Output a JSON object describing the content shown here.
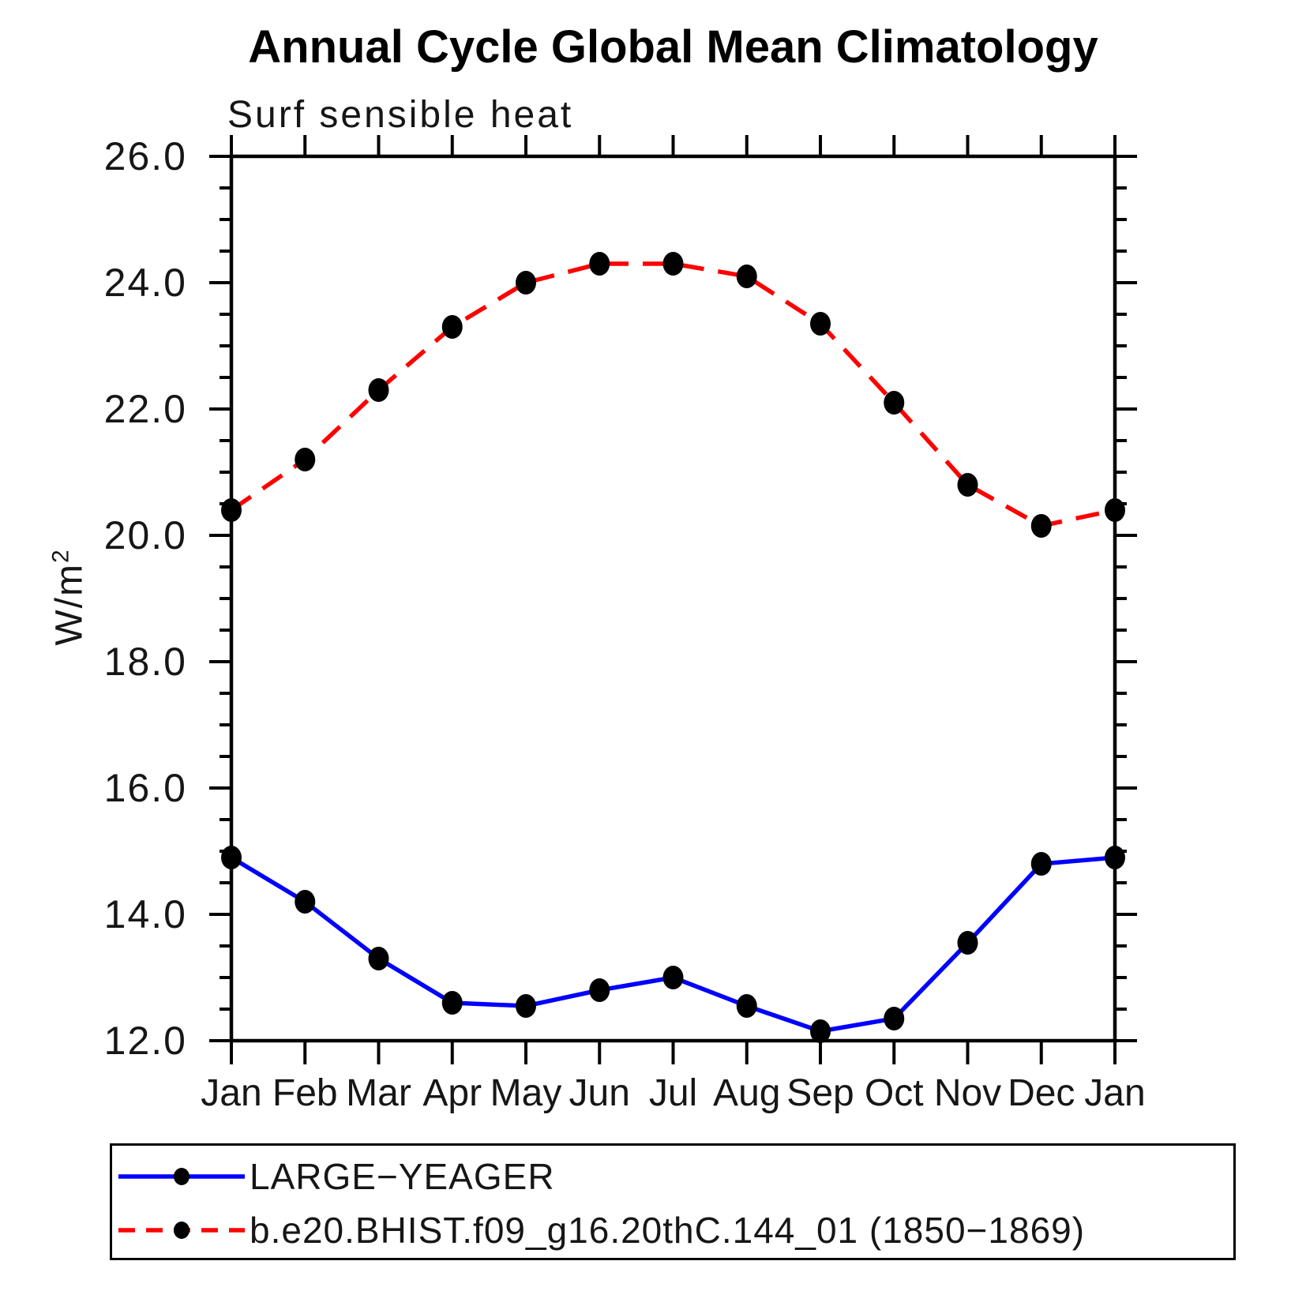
{
  "title": "Annual Cycle Global Mean Climatology",
  "subtitle": "Surf sensible heat",
  "ylabel": {
    "base": "W/m",
    "exponent": "2"
  },
  "legend": {
    "items": [
      {
        "label": "LARGE−YEAGER"
      },
      {
        "label": "b.e20.BHIST.f09_g16.20thC.144_01 (1850−1869)"
      }
    ]
  },
  "chart_data": {
    "type": "line",
    "title": "Annual Cycle Global Mean Climatology",
    "subtitle": "Surf sensible heat",
    "ylabel": "W/m2",
    "x_categories": [
      "Jan",
      "Feb",
      "Mar",
      "Apr",
      "May",
      "Jun",
      "Jul",
      "Aug",
      "Sep",
      "Oct",
      "Nov",
      "Dec",
      "Jan"
    ],
    "ylim": [
      12.0,
      26.0
    ],
    "ytick_major_step": 2.0,
    "ytick_minor_step": 0.5,
    "ytick_labels": [
      "12.0",
      "14.0",
      "16.0",
      "18.0",
      "20.0",
      "22.0",
      "24.0",
      "26.0"
    ],
    "grid": false,
    "legend_position": "bottom",
    "marker_color": "#000000",
    "series": [
      {
        "name": "LARGE−YEAGER",
        "color": "#0000ff",
        "line_style": "solid",
        "marker": "filled-circle",
        "values": [
          14.9,
          14.2,
          13.3,
          12.6,
          12.55,
          12.8,
          13.0,
          12.55,
          12.15,
          12.35,
          13.55,
          14.8,
          14.9
        ]
      },
      {
        "name": "b.e20.BHIST.f09_g16.20thC.144_01 (1850−1869)",
        "color": "#ff0000",
        "line_style": "dashed",
        "marker": "filled-circle",
        "values": [
          20.4,
          21.2,
          22.3,
          23.3,
          24.0,
          24.3,
          24.3,
          24.1,
          23.35,
          22.1,
          20.8,
          20.15,
          20.4
        ]
      }
    ]
  }
}
